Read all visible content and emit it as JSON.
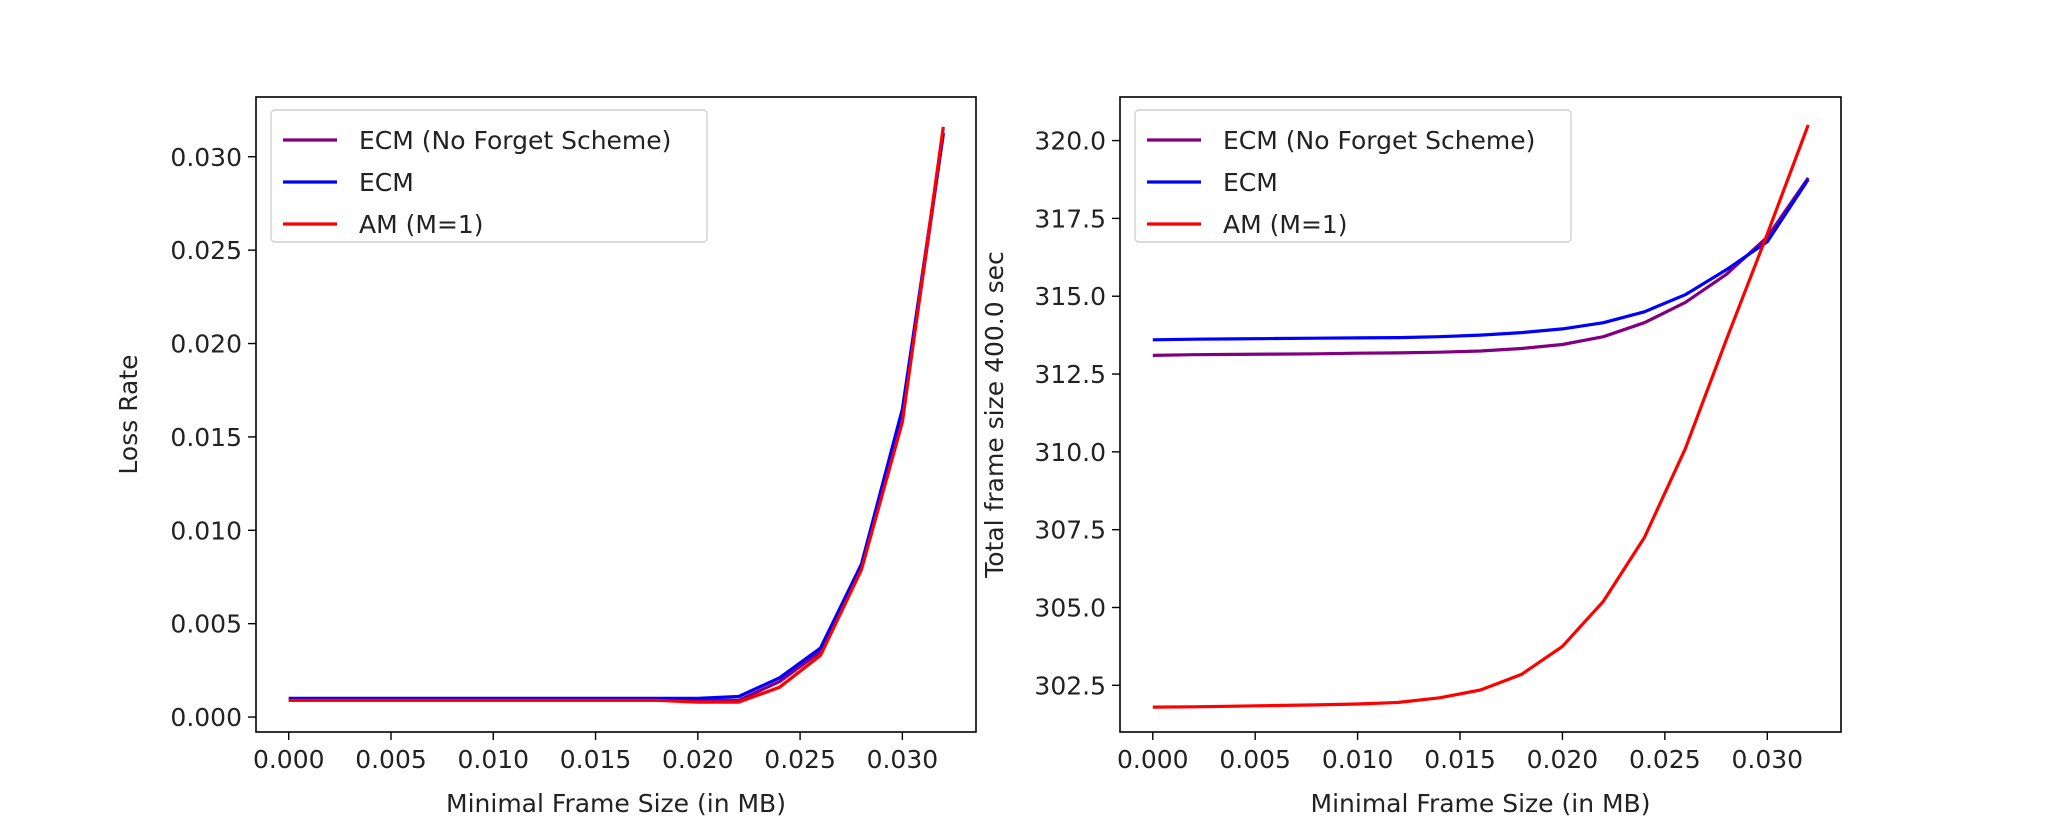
{
  "chart_data": [
    {
      "type": "line",
      "title": "",
      "xlabel": "Minimal Frame Size (in MB)",
      "ylabel": "Loss Rate",
      "xlim": [
        -0.0016,
        0.0336
      ],
      "ylim": [
        -0.0008,
        0.0332
      ],
      "xticks": [
        "0.000",
        "0.005",
        "0.010",
        "0.015",
        "0.020",
        "0.025",
        "0.030"
      ],
      "yticks": [
        "0.000",
        "0.005",
        "0.010",
        "0.015",
        "0.020",
        "0.025",
        "0.030"
      ],
      "legend_position": "top-left",
      "x": [
        0.0,
        0.002,
        0.004,
        0.006,
        0.008,
        0.01,
        0.012,
        0.014,
        0.016,
        0.018,
        0.02,
        0.022,
        0.024,
        0.026,
        0.028,
        0.03,
        0.032
      ],
      "series": [
        {
          "name": "ECM (No Forget Scheme)",
          "color": "#800080",
          "values": [
            0.0009,
            0.0009,
            0.0009,
            0.0009,
            0.0009,
            0.0009,
            0.0009,
            0.0009,
            0.0009,
            0.0009,
            0.0009,
            0.0009,
            0.0019,
            0.0035,
            0.008,
            0.016,
            0.0312
          ]
        },
        {
          "name": "ECM",
          "color": "#0000ff",
          "values": [
            0.001,
            0.001,
            0.001,
            0.001,
            0.001,
            0.001,
            0.001,
            0.001,
            0.001,
            0.001,
            0.001,
            0.0011,
            0.0021,
            0.0037,
            0.0082,
            0.0165,
            0.0313
          ]
        },
        {
          "name": "AM (M=1)",
          "color": "#ff0000",
          "values": [
            0.0009,
            0.0009,
            0.0009,
            0.0009,
            0.0009,
            0.0009,
            0.0009,
            0.0009,
            0.0009,
            0.0009,
            0.0008,
            0.0008,
            0.0016,
            0.0033,
            0.0079,
            0.0158,
            0.0316
          ]
        }
      ]
    },
    {
      "type": "line",
      "title": "",
      "xlabel": "Minimal Frame Size (in MB)",
      "ylabel": "Total frame size 400.0 sec",
      "xlim": [
        -0.0016,
        0.0336
      ],
      "ylim": [
        301.0,
        321.4
      ],
      "xticks": [
        "0.000",
        "0.005",
        "0.010",
        "0.015",
        "0.020",
        "0.025",
        "0.030"
      ],
      "yticks": [
        "302.5",
        "305.0",
        "307.5",
        "310.0",
        "312.5",
        "315.0",
        "317.5",
        "320.0"
      ],
      "legend_position": "top-left",
      "x": [
        0.0,
        0.002,
        0.004,
        0.006,
        0.008,
        0.01,
        0.012,
        0.014,
        0.016,
        0.018,
        0.02,
        0.022,
        0.024,
        0.026,
        0.028,
        0.03,
        0.032
      ],
      "series": [
        {
          "name": "ECM (No Forget Scheme)",
          "color": "#800080",
          "values": [
            313.1,
            313.12,
            313.13,
            313.14,
            313.15,
            313.17,
            313.18,
            313.2,
            313.24,
            313.32,
            313.45,
            313.7,
            314.15,
            314.8,
            315.7,
            316.9,
            318.8
          ]
        },
        {
          "name": "ECM",
          "color": "#0000ff",
          "values": [
            313.6,
            313.62,
            313.63,
            313.64,
            313.65,
            313.66,
            313.67,
            313.7,
            313.75,
            313.83,
            313.95,
            314.15,
            314.5,
            315.05,
            315.85,
            316.75,
            318.75
          ]
        },
        {
          "name": "AM (M=1)",
          "color": "#ff0000",
          "values": [
            301.8,
            301.81,
            301.83,
            301.85,
            301.87,
            301.9,
            301.95,
            302.1,
            302.35,
            302.85,
            303.75,
            305.2,
            307.25,
            310.1,
            313.6,
            317.0,
            320.5
          ]
        }
      ]
    }
  ]
}
